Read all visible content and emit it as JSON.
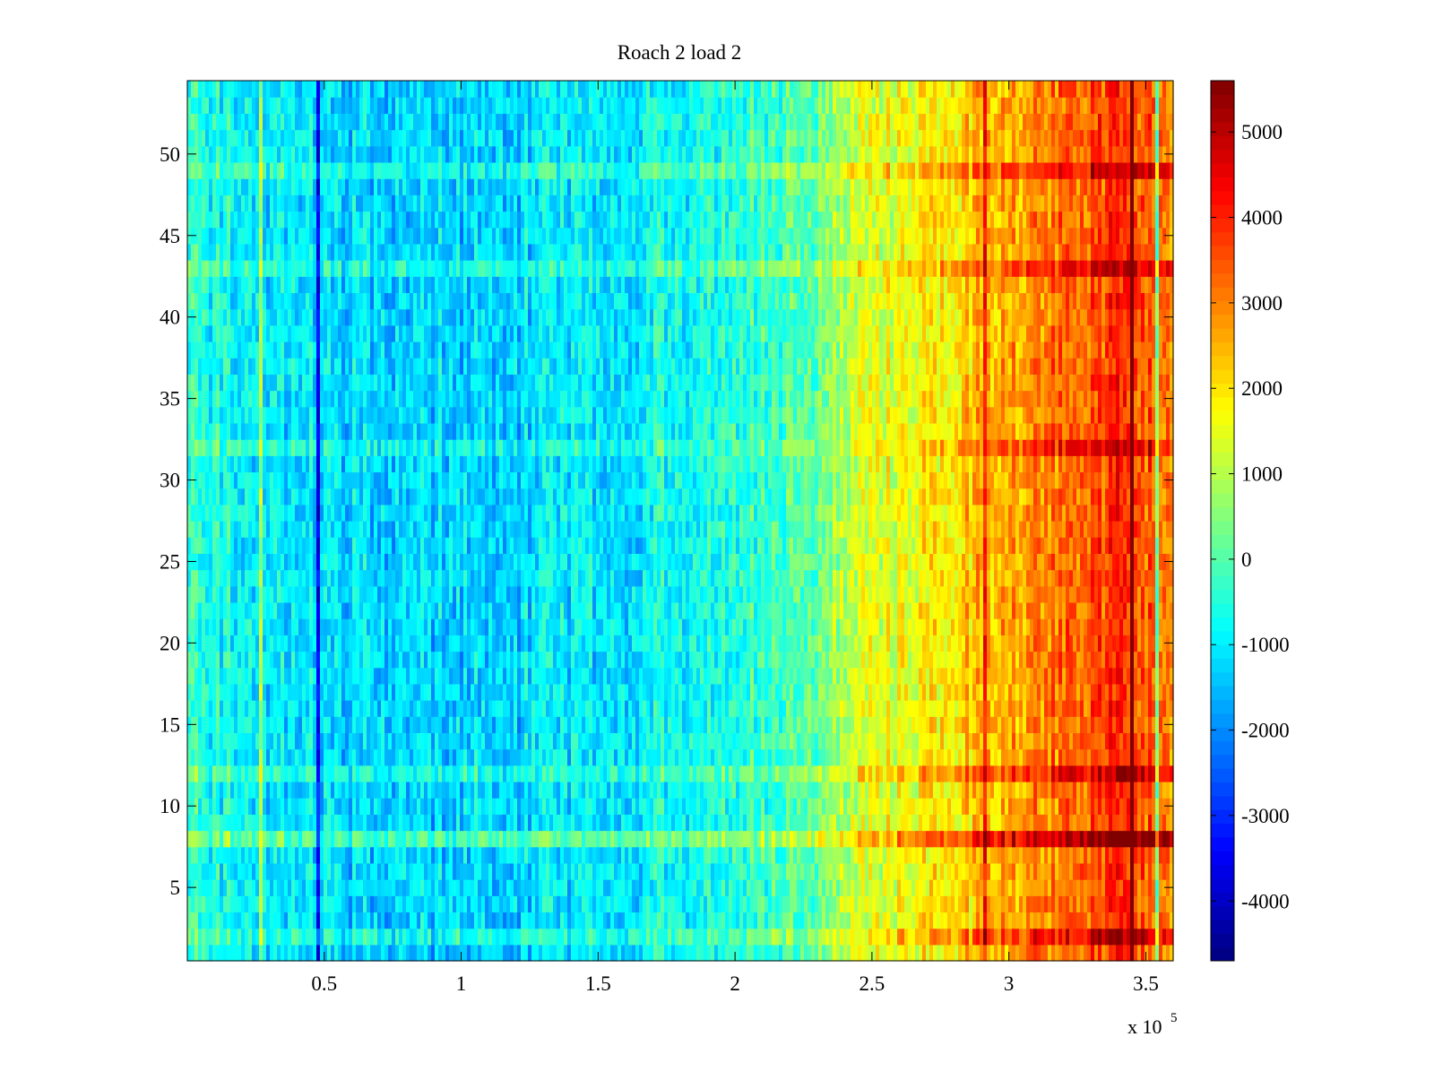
{
  "chart_data": {
    "type": "heatmap",
    "title": "Roach 2 load 2",
    "xlabel": "",
    "ylabel": "",
    "x_multiplier": "x 10",
    "x_multiplier_exponent": "5",
    "xlim": [
      0,
      3.6
    ],
    "ylim": [
      0.5,
      54.5
    ],
    "x_ticks": [
      0.5,
      1,
      1.5,
      2,
      2.5,
      3,
      3.5
    ],
    "x_tick_labels": [
      "0.5",
      "1",
      "1.5",
      "2",
      "2.5",
      "3",
      "3.5"
    ],
    "y_ticks": [
      5,
      10,
      15,
      20,
      25,
      30,
      35,
      40,
      45,
      50
    ],
    "y_tick_labels": [
      "5",
      "10",
      "15",
      "20",
      "25",
      "30",
      "35",
      "40",
      "45",
      "50"
    ],
    "rows": 54,
    "colormap": "jet",
    "colorbar": {
      "range": [
        -4700,
        5600
      ],
      "ticks": [
        -4000,
        -3000,
        -2000,
        -1000,
        0,
        1000,
        2000,
        3000,
        4000,
        5000
      ],
      "tick_labels": [
        "-4000",
        "-3000",
        "-2000",
        "-1000",
        "0",
        "1000",
        "2000",
        "3000",
        "4000",
        "5000"
      ]
    },
    "trend_profile": [
      {
        "x": 0.0,
        "value": -500
      },
      {
        "x": 0.5,
        "value": -1200
      },
      {
        "x": 1.0,
        "value": -1300
      },
      {
        "x": 1.5,
        "value": -1100
      },
      {
        "x": 2.0,
        "value": -500
      },
      {
        "x": 2.3,
        "value": 300
      },
      {
        "x": 2.5,
        "value": 1300
      },
      {
        "x": 2.8,
        "value": 2100
      },
      {
        "x": 3.1,
        "value": 2900
      },
      {
        "x": 3.4,
        "value": 3800
      },
      {
        "x": 3.6,
        "value": 3000
      }
    ],
    "row_offsets": [
      {
        "row": 2,
        "offset": 600
      },
      {
        "row": 8,
        "offset": 1100
      },
      {
        "row": 12,
        "offset": 600
      },
      {
        "row": 32,
        "offset": 500
      },
      {
        "row": 43,
        "offset": 600
      },
      {
        "row": 49,
        "offset": 600
      }
    ],
    "grid": false,
    "legend": "none"
  }
}
